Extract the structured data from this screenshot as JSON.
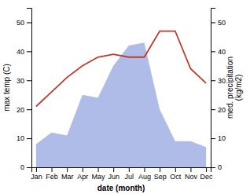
{
  "chart_data": {
    "type": "line",
    "xlabel": "date (month)",
    "ylabel": "max temp (C)",
    "y2label": "med. precipitation\n(kg/m2)",
    "categories": [
      "Jan",
      "Feb",
      "Mar",
      "Apr",
      "May",
      "Jun",
      "Jul",
      "Aug",
      "Sep",
      "Oct",
      "Nov",
      "Dec"
    ],
    "series": [
      {
        "type": "area",
        "axis": "y2",
        "color": "#b0bce8",
        "values": [
          8,
          12,
          11,
          25,
          24,
          35,
          42,
          43,
          20,
          9,
          9,
          7
        ]
      },
      {
        "type": "line",
        "color": "#c0392b",
        "values": [
          21,
          26,
          31,
          35,
          38,
          39,
          38,
          38,
          47,
          47,
          34,
          29
        ]
      }
    ],
    "ylim": [
      0,
      55
    ],
    "yticks": [
      0,
      10,
      20,
      30,
      40,
      50
    ],
    "y2lim": [
      0,
      55
    ],
    "y2ticks": [
      0,
      10,
      20,
      30,
      40,
      50
    ]
  }
}
